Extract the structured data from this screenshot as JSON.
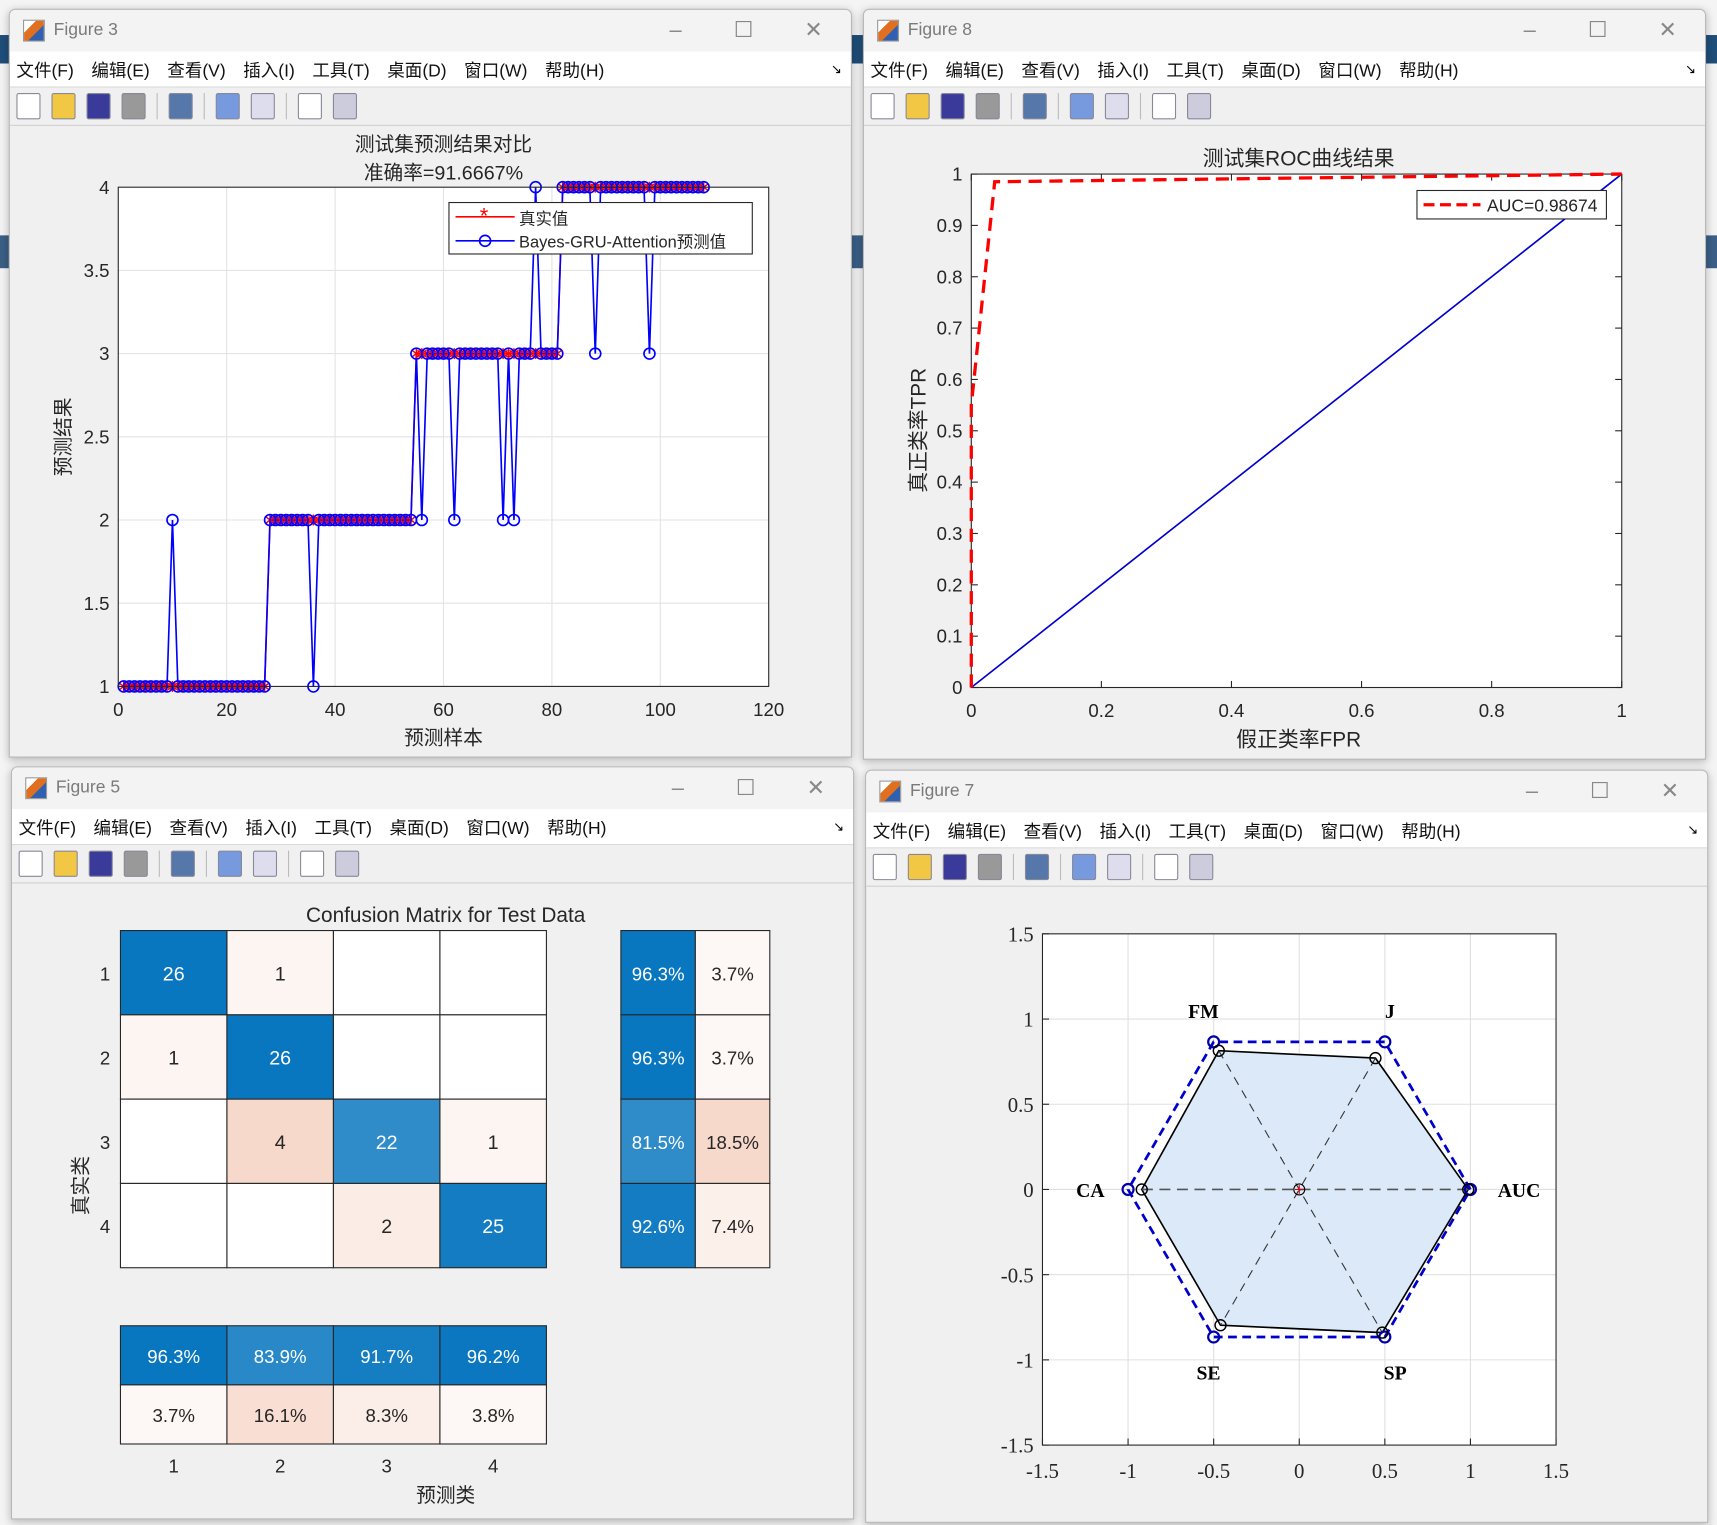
{
  "windows": [
    {
      "id": "f3",
      "title": "Figure 3"
    },
    {
      "id": "f8",
      "title": "Figure 8"
    },
    {
      "id": "f5",
      "title": "Figure 5"
    },
    {
      "id": "f7",
      "title": "Figure 7"
    }
  ],
  "menu": [
    "文件(F)",
    "编辑(E)",
    "查看(V)",
    "插入(I)",
    "工具(T)",
    "桌面(D)",
    "窗口(W)",
    "帮助(H)"
  ],
  "toolbar_icons": [
    "new-figure-icon",
    "open-file-icon",
    "save-icon",
    "print-icon",
    "link-plot-icon",
    "colorbar-icon",
    "legend-icon",
    "pointer-icon",
    "property-inspector-icon"
  ],
  "chart_data": [
    {
      "type": "line",
      "title": "测试集预测结果对比",
      "subtitle": "准确率=91.6667%",
      "xlabel": "预测样本",
      "ylabel": "预测结果",
      "xlim": [
        0,
        120
      ],
      "ylim": [
        1,
        4
      ],
      "xticks": [
        0,
        20,
        40,
        60,
        80,
        100,
        120
      ],
      "yticks": [
        1,
        1.5,
        2,
        2.5,
        3,
        3.5,
        4
      ],
      "grid": true,
      "legend_placement": "top-right",
      "series": [
        {
          "name": "真实值",
          "color": "#ff0000",
          "marker": "*",
          "values": [
            1,
            1,
            1,
            1,
            1,
            1,
            1,
            1,
            1,
            1,
            1,
            1,
            1,
            1,
            1,
            1,
            1,
            1,
            1,
            1,
            1,
            1,
            1,
            1,
            1,
            1,
            1,
            2,
            2,
            2,
            2,
            2,
            2,
            2,
            2,
            2,
            2,
            2,
            2,
            2,
            2,
            2,
            2,
            2,
            2,
            2,
            2,
            2,
            2,
            2,
            2,
            2,
            2,
            2,
            3,
            3,
            3,
            3,
            3,
            3,
            3,
            3,
            3,
            3,
            3,
            3,
            3,
            3,
            3,
            3,
            3,
            3,
            3,
            3,
            3,
            3,
            3,
            3,
            3,
            3,
            3,
            4,
            4,
            4,
            4,
            4,
            4,
            4,
            4,
            4,
            4,
            4,
            4,
            4,
            4,
            4,
            4,
            4,
            4,
            4,
            4,
            4,
            4,
            4,
            4,
            4,
            4,
            4
          ]
        },
        {
          "name": "Bayes-GRU-Attention预测值",
          "color": "#0000ff",
          "marker": "o",
          "values": [
            1,
            1,
            1,
            1,
            1,
            1,
            1,
            1,
            1,
            2,
            1,
            1,
            1,
            1,
            1,
            1,
            1,
            1,
            1,
            1,
            1,
            1,
            1,
            1,
            1,
            1,
            1,
            2,
            2,
            2,
            2,
            2,
            2,
            2,
            2,
            1,
            2,
            2,
            2,
            2,
            2,
            2,
            2,
            2,
            2,
            2,
            2,
            2,
            2,
            2,
            2,
            2,
            2,
            2,
            3,
            2,
            3,
            3,
            3,
            3,
            3,
            2,
            3,
            3,
            3,
            3,
            3,
            3,
            3,
            3,
            2,
            3,
            2,
            3,
            3,
            3,
            4,
            3,
            3,
            3,
            3,
            4,
            4,
            4,
            4,
            4,
            4,
            3,
            4,
            4,
            4,
            4,
            4,
            4,
            4,
            4,
            4,
            3,
            4,
            4,
            4,
            4,
            4,
            4,
            4,
            4,
            4,
            4
          ]
        }
      ]
    },
    {
      "type": "line",
      "title": "测试集ROC曲线结果",
      "xlabel": "假正类率FPR",
      "ylabel": "真正类率TPR",
      "xlim": [
        0,
        1
      ],
      "ylim": [
        0,
        1
      ],
      "xticks": [
        0,
        0.2,
        0.4,
        0.6,
        0.8,
        1
      ],
      "yticks": [
        0,
        0.1,
        0.2,
        0.3,
        0.4,
        0.5,
        0.6,
        0.7,
        0.8,
        0.9,
        1
      ],
      "grid": false,
      "legend_placement": "top-right",
      "series": [
        {
          "name": "AUC=0.98674",
          "color": "#ff0000",
          "style": "dashed",
          "x": [
            0,
            0,
            0.036,
            1
          ],
          "y": [
            0,
            0.55,
            0.985,
            1
          ]
        },
        {
          "color": "#0000cc",
          "style": "solid",
          "x": [
            0,
            1
          ],
          "y": [
            0,
            1
          ]
        }
      ]
    },
    {
      "type": "heatmap",
      "title": "Confusion Matrix for Test Data",
      "xlabel": "预测类",
      "ylabel": "真实类",
      "classes": [
        "1",
        "2",
        "3",
        "4"
      ],
      "matrix": [
        [
          26,
          1,
          0,
          0
        ],
        [
          1,
          26,
          0,
          0
        ],
        [
          0,
          4,
          22,
          1
        ],
        [
          0,
          0,
          2,
          25
        ]
      ],
      "row_summary": [
        [
          "96.3%",
          "3.7%"
        ],
        [
          "96.3%",
          "3.7%"
        ],
        [
          "81.5%",
          "18.5%"
        ],
        [
          "92.6%",
          "7.4%"
        ]
      ],
      "column_summary": [
        [
          "96.3%",
          "83.9%",
          "91.7%",
          "96.2%"
        ],
        [
          "3.7%",
          "16.1%",
          "8.3%",
          "3.8%"
        ]
      ],
      "colors": {
        "correct": "#0072BD",
        "incorrect": "#D95319"
      }
    },
    {
      "type": "radar",
      "xlim": [
        -1.5,
        1.5
      ],
      "ylim": [
        -1.5,
        1.5
      ],
      "ticks": [
        -1.5,
        -1,
        -0.5,
        0,
        0.5,
        1,
        1.5
      ],
      "grid": true,
      "axes": [
        "AUC",
        "J",
        "FM",
        "CA",
        "SE",
        "SP"
      ],
      "values": [
        0.987,
        0.89,
        0.94,
        0.92,
        0.92,
        0.97
      ],
      "reference": 1,
      "colors": {
        "fill": "#dbe9f8",
        "outline": "#000000",
        "reference": "#0000cc"
      }
    }
  ]
}
